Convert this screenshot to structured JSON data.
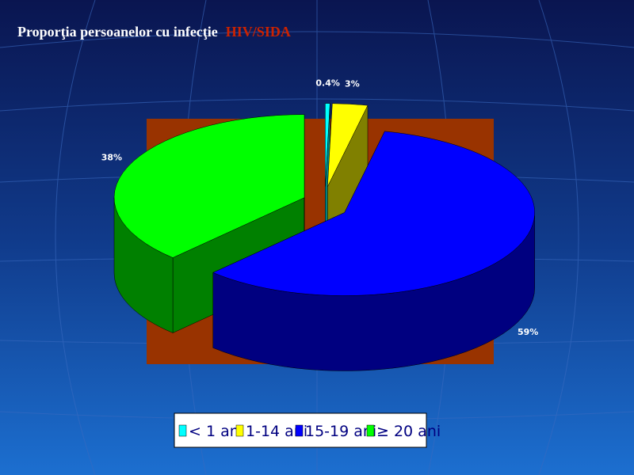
{
  "chart_data": {
    "type": "pie",
    "title": [
      "Proporţia persoanelor cu infecţie",
      "HIV/SIDA"
    ],
    "title_colors": [
      "#ffffff",
      "#cc2200"
    ],
    "categories": [
      "< 1 an",
      "1-14 ani",
      "15-19 ani",
      "≥ 20 ani"
    ],
    "values": [
      0.4,
      3,
      59,
      38
    ],
    "value_labels": [
      "0.4%",
      "3%",
      "59%",
      "38%"
    ],
    "colors": [
      "#00ffff",
      "#ffff00",
      "#0000ff",
      "#00ff00"
    ],
    "legend": "bottom"
  }
}
